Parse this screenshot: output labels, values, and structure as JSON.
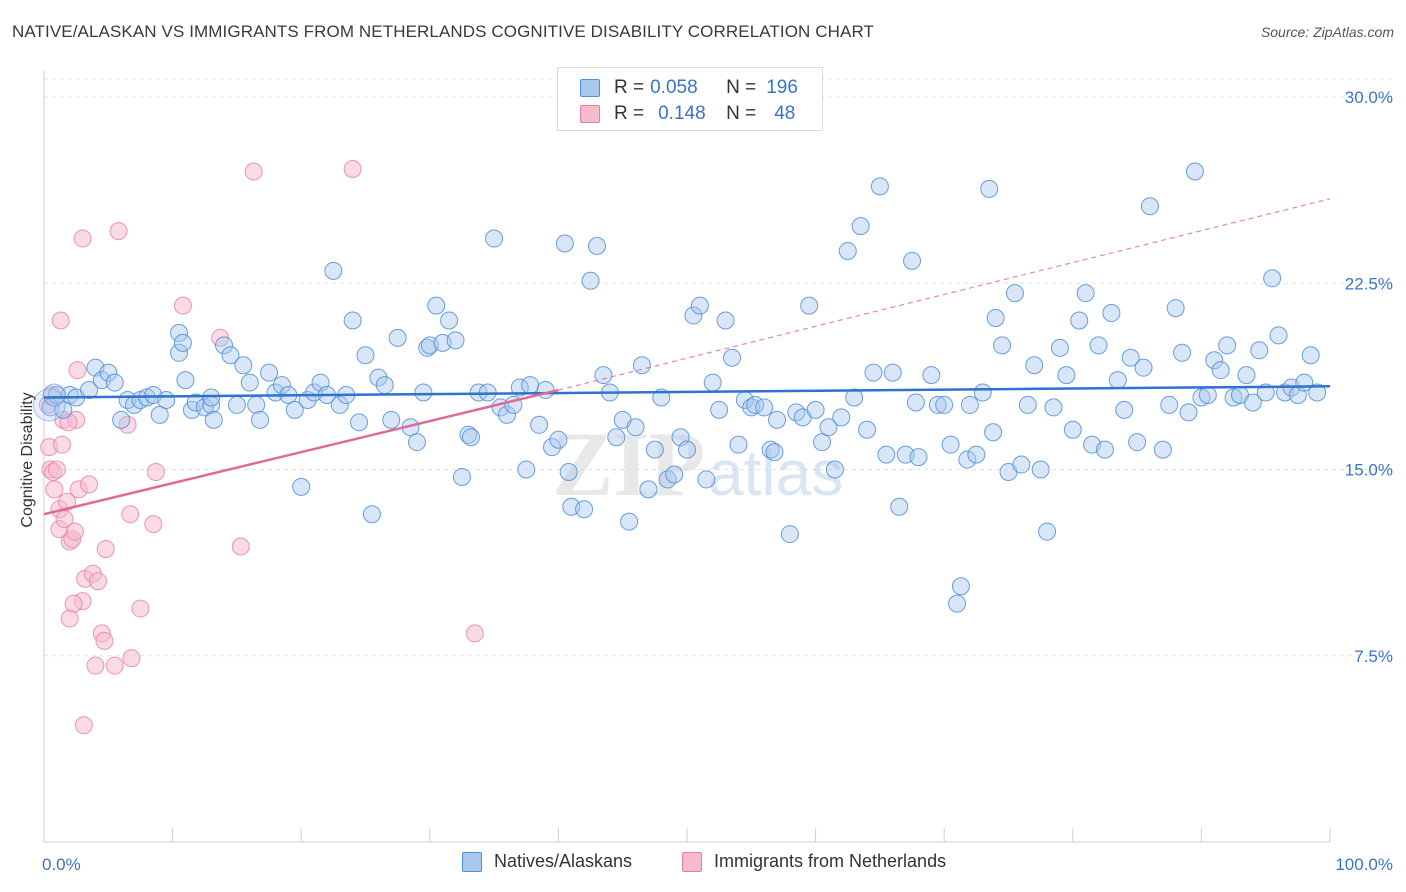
{
  "title": "NATIVE/ALASKAN VS IMMIGRANTS FROM NETHERLANDS COGNITIVE DISABILITY CORRELATION CHART",
  "source": "Source: ZipAtlas.com",
  "watermark": {
    "zip": "ZIP",
    "atlas": "atlas"
  },
  "legend": {
    "rows": [
      {
        "r_label": "R =",
        "r_value": "0.058",
        "n_label": "N =",
        "n_value": "196"
      },
      {
        "r_label": "R =",
        "r_value": "0.148",
        "n_label": "N =",
        "n_value": "48"
      }
    ]
  },
  "colors": {
    "blue": "#4f8fd8",
    "blue_fill": "#a9c8ee",
    "blue_line": "#2f72d0",
    "pink": "#e57fa4",
    "pink_fill": "#f6bccd",
    "pink_line": "#de6a95",
    "value_text": "#3a74c8"
  },
  "chart_data": {
    "type": "scatter",
    "title": "NATIVE/ALASKAN VS IMMIGRANTS FROM NETHERLANDS COGNITIVE DISABILITY CORRELATION CHART",
    "xlabel": "",
    "ylabel": "Cognitive Disability",
    "xlim": [
      0,
      100
    ],
    "ylim": [
      0,
      31.5
    ],
    "x_tick_labels": [
      "0.0%",
      "100.0%"
    ],
    "y_ticks": [
      7.5,
      15.0,
      22.5,
      30.0
    ],
    "y_tick_labels": [
      "7.5%",
      "15.0%",
      "22.5%",
      "30.0%"
    ],
    "grid": "horizontal dashed",
    "legend_position": "top-center",
    "series": [
      {
        "name": "Natives/Alaskans",
        "r": 0.058,
        "n": 196,
        "trend": {
          "x": [
            0,
            100
          ],
          "y": [
            17.9,
            18.35
          ]
        },
        "points": [
          [
            0.5,
            17.5
          ],
          [
            1.0,
            18.0
          ],
          [
            1.5,
            17.4
          ],
          [
            2.0,
            18.0
          ],
          [
            2.5,
            17.9
          ],
          [
            3.5,
            18.2
          ],
          [
            4.0,
            19.1
          ],
          [
            4.5,
            18.6
          ],
          [
            5.0,
            18.9
          ],
          [
            5.5,
            18.5
          ],
          [
            6.0,
            17.0
          ],
          [
            6.5,
            17.8
          ],
          [
            7.0,
            17.6
          ],
          [
            7.5,
            17.8
          ],
          [
            8.0,
            17.9
          ],
          [
            8.5,
            18.0
          ],
          [
            9.0,
            17.2
          ],
          [
            9.5,
            17.8
          ],
          [
            10.5,
            19.7
          ],
          [
            10.5,
            20.5
          ],
          [
            10.8,
            20.1
          ],
          [
            11.0,
            18.6
          ],
          [
            11.5,
            17.4
          ],
          [
            11.8,
            17.7
          ],
          [
            12.5,
            17.5
          ],
          [
            13.0,
            17.6
          ],
          [
            13.0,
            17.9
          ],
          [
            13.2,
            17.0
          ],
          [
            14.0,
            20.0
          ],
          [
            14.5,
            19.6
          ],
          [
            15.0,
            17.6
          ],
          [
            15.5,
            19.2
          ],
          [
            16.0,
            18.5
          ],
          [
            16.5,
            17.6
          ],
          [
            16.8,
            17.0
          ],
          [
            17.5,
            18.9
          ],
          [
            18.0,
            18.1
          ],
          [
            18.5,
            18.4
          ],
          [
            19.0,
            18.0
          ],
          [
            19.5,
            17.4
          ],
          [
            20.0,
            14.3
          ],
          [
            20.5,
            17.8
          ],
          [
            21.0,
            18.1
          ],
          [
            21.5,
            18.5
          ],
          [
            22.0,
            18.0
          ],
          [
            22.5,
            23.0
          ],
          [
            23.0,
            17.6
          ],
          [
            23.5,
            18.0
          ],
          [
            24.0,
            21.0
          ],
          [
            24.5,
            16.9
          ],
          [
            25.0,
            19.6
          ],
          [
            25.5,
            13.2
          ],
          [
            26.0,
            18.7
          ],
          [
            26.5,
            18.4
          ],
          [
            27.0,
            17.0
          ],
          [
            27.5,
            20.3
          ],
          [
            28.5,
            16.7
          ],
          [
            29.0,
            16.1
          ],
          [
            29.5,
            18.1
          ],
          [
            29.8,
            19.9
          ],
          [
            30.0,
            20.0
          ],
          [
            30.5,
            21.6
          ],
          [
            31.0,
            20.1
          ],
          [
            31.5,
            21.0
          ],
          [
            32.0,
            20.2
          ],
          [
            32.5,
            14.7
          ],
          [
            33.0,
            16.4
          ],
          [
            33.2,
            16.3
          ],
          [
            33.8,
            18.1
          ],
          [
            34.5,
            18.1
          ],
          [
            35.0,
            24.3
          ],
          [
            35.5,
            17.5
          ],
          [
            36.0,
            17.2
          ],
          [
            36.5,
            17.6
          ],
          [
            37.0,
            18.3
          ],
          [
            37.5,
            15.0
          ],
          [
            37.8,
            18.4
          ],
          [
            38.5,
            16.8
          ],
          [
            39.0,
            18.2
          ],
          [
            39.5,
            15.9
          ],
          [
            40.0,
            16.2
          ],
          [
            40.5,
            24.1
          ],
          [
            40.8,
            14.9
          ],
          [
            41.0,
            13.5
          ],
          [
            42.0,
            13.4
          ],
          [
            42.5,
            22.6
          ],
          [
            43.0,
            24.0
          ],
          [
            43.5,
            18.8
          ],
          [
            44.0,
            18.1
          ],
          [
            44.5,
            16.3
          ],
          [
            45.0,
            17.0
          ],
          [
            45.5,
            12.9
          ],
          [
            46.0,
            16.7
          ],
          [
            46.5,
            19.2
          ],
          [
            47.0,
            14.2
          ],
          [
            47.5,
            15.8
          ],
          [
            48.0,
            17.9
          ],
          [
            48.5,
            14.6
          ],
          [
            49.0,
            14.8
          ],
          [
            49.5,
            16.3
          ],
          [
            50.0,
            15.8
          ],
          [
            50.5,
            21.2
          ],
          [
            51.0,
            21.6
          ],
          [
            51.5,
            14.6
          ],
          [
            52.0,
            18.5
          ],
          [
            52.5,
            17.4
          ],
          [
            53.0,
            21.0
          ],
          [
            53.5,
            19.5
          ],
          [
            54.0,
            16.0
          ],
          [
            54.5,
            17.8
          ],
          [
            55.0,
            17.5
          ],
          [
            55.3,
            17.6
          ],
          [
            56.0,
            17.5
          ],
          [
            56.5,
            15.8
          ],
          [
            56.8,
            15.7
          ],
          [
            57.0,
            17.0
          ],
          [
            58.0,
            12.4
          ],
          [
            58.5,
            17.3
          ],
          [
            59.0,
            17.1
          ],
          [
            59.5,
            21.6
          ],
          [
            60.0,
            17.4
          ],
          [
            60.5,
            16.1
          ],
          [
            61.0,
            16.7
          ],
          [
            61.5,
            15.0
          ],
          [
            62.0,
            17.1
          ],
          [
            62.5,
            23.8
          ],
          [
            63.0,
            17.9
          ],
          [
            63.5,
            24.8
          ],
          [
            64.0,
            16.6
          ],
          [
            64.5,
            18.9
          ],
          [
            65.0,
            26.4
          ],
          [
            65.5,
            15.6
          ],
          [
            66.0,
            18.9
          ],
          [
            66.5,
            13.5
          ],
          [
            67.0,
            15.6
          ],
          [
            67.5,
            23.4
          ],
          [
            67.8,
            17.7
          ],
          [
            68.0,
            15.5
          ],
          [
            69.0,
            18.8
          ],
          [
            69.5,
            17.6
          ],
          [
            70.0,
            17.6
          ],
          [
            70.5,
            16.0
          ],
          [
            71.0,
            9.6
          ],
          [
            71.3,
            10.3
          ],
          [
            71.8,
            15.4
          ],
          [
            72.0,
            17.6
          ],
          [
            72.5,
            15.6
          ],
          [
            73.0,
            18.1
          ],
          [
            73.5,
            26.3
          ],
          [
            73.8,
            16.5
          ],
          [
            74.0,
            21.1
          ],
          [
            74.5,
            20.0
          ],
          [
            75.0,
            14.9
          ],
          [
            75.5,
            22.1
          ],
          [
            76.0,
            15.2
          ],
          [
            76.5,
            17.6
          ],
          [
            77.0,
            19.2
          ],
          [
            77.5,
            15.0
          ],
          [
            78.0,
            12.5
          ],
          [
            78.5,
            17.5
          ],
          [
            79.0,
            19.9
          ],
          [
            79.5,
            18.8
          ],
          [
            80.0,
            16.6
          ],
          [
            80.5,
            21.0
          ],
          [
            81.0,
            22.1
          ],
          [
            81.5,
            16.0
          ],
          [
            82.0,
            20.0
          ],
          [
            82.5,
            15.8
          ],
          [
            83.0,
            21.3
          ],
          [
            83.5,
            18.6
          ],
          [
            84.0,
            17.4
          ],
          [
            84.5,
            19.5
          ],
          [
            85.0,
            16.1
          ],
          [
            85.5,
            19.1
          ],
          [
            86.0,
            25.6
          ],
          [
            87.0,
            15.8
          ],
          [
            87.5,
            17.6
          ],
          [
            88.0,
            21.5
          ],
          [
            88.5,
            19.7
          ],
          [
            89.0,
            17.3
          ],
          [
            89.5,
            27.0
          ],
          [
            90.0,
            17.9
          ],
          [
            90.5,
            18.0
          ],
          [
            91.0,
            19.4
          ],
          [
            91.5,
            19.0
          ],
          [
            92.0,
            20.0
          ],
          [
            92.5,
            17.9
          ],
          [
            93.0,
            18.0
          ],
          [
            93.5,
            18.8
          ],
          [
            94.0,
            17.7
          ],
          [
            94.5,
            19.8
          ],
          [
            95.0,
            18.1
          ],
          [
            95.5,
            22.7
          ],
          [
            96.0,
            20.4
          ],
          [
            96.5,
            18.1
          ],
          [
            97.0,
            18.3
          ],
          [
            97.5,
            18.0
          ],
          [
            98.0,
            18.5
          ],
          [
            98.5,
            19.6
          ],
          [
            99.0,
            18.1
          ]
        ]
      },
      {
        "name": "Immigrants from Netherlands",
        "r": 0.148,
        "n": 48,
        "trend": {
          "x": [
            0,
            40
          ],
          "y": [
            13.2,
            18.2
          ]
        },
        "trend_extension": {
          "x": [
            40,
            100
          ],
          "y": [
            18.2,
            25.9
          ]
        },
        "points": [
          [
            0.3,
            17.6
          ],
          [
            0.4,
            15.9
          ],
          [
            0.5,
            15.0
          ],
          [
            0.6,
            18.0
          ],
          [
            0.7,
            14.9
          ],
          [
            0.8,
            14.2
          ],
          [
            1.0,
            15.0
          ],
          [
            1.2,
            13.4
          ],
          [
            1.4,
            16.0
          ],
          [
            1.5,
            17.0
          ],
          [
            1.2,
            12.6
          ],
          [
            1.6,
            13.0
          ],
          [
            1.8,
            13.7
          ],
          [
            2.0,
            12.1
          ],
          [
            1.3,
            21.0
          ],
          [
            2.2,
            12.2
          ],
          [
            2.4,
            12.5
          ],
          [
            2.5,
            17.0
          ],
          [
            2.6,
            19.0
          ],
          [
            2.7,
            14.2
          ],
          [
            1.9,
            16.9
          ],
          [
            3.0,
            9.7
          ],
          [
            2.0,
            9.0
          ],
          [
            2.3,
            9.6
          ],
          [
            3.2,
            10.6
          ],
          [
            3.5,
            14.4
          ],
          [
            3.8,
            10.8
          ],
          [
            4.0,
            7.1
          ],
          [
            4.2,
            10.5
          ],
          [
            4.5,
            8.4
          ],
          [
            4.7,
            8.1
          ],
          [
            4.8,
            11.8
          ],
          [
            5.5,
            7.1
          ],
          [
            5.8,
            24.6
          ],
          [
            6.5,
            16.8
          ],
          [
            6.7,
            13.2
          ],
          [
            6.8,
            7.4
          ],
          [
            7.5,
            9.4
          ],
          [
            8.5,
            12.8
          ],
          [
            8.7,
            14.9
          ],
          [
            10.8,
            21.6
          ],
          [
            13.7,
            20.3
          ],
          [
            15.3,
            11.9
          ],
          [
            16.3,
            27.0
          ],
          [
            24.0,
            27.1
          ],
          [
            3.0,
            24.3
          ],
          [
            33.5,
            8.4
          ],
          [
            3.1,
            4.7
          ]
        ]
      }
    ]
  },
  "bottom_legend": [
    {
      "label": "Natives/Alaskans"
    },
    {
      "label": "Immigrants from Netherlands"
    }
  ]
}
